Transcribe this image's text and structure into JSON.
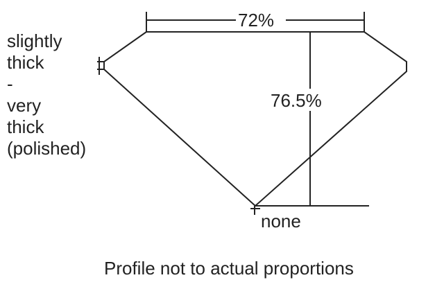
{
  "labels": {
    "table": "72%",
    "depth": "76.5%",
    "culet": "none",
    "girdle": [
      "slightly",
      "thick",
      "-",
      "very",
      "thick",
      "(polished)"
    ],
    "note": "Profile not to actual proportions"
  },
  "colors": {
    "line": "#222222",
    "background": "#ffffff"
  }
}
